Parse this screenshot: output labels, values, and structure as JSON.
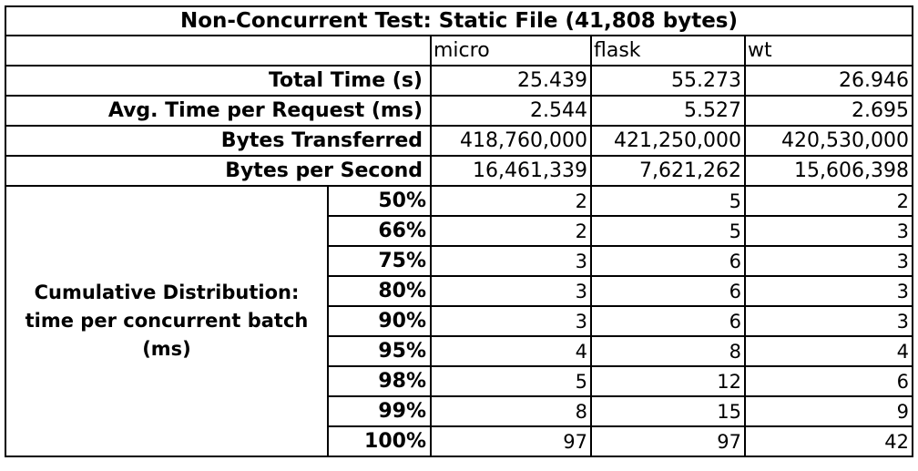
{
  "chart_data": {
    "type": "table",
    "title": "Non-Concurrent Test: Static File (41,808 bytes)",
    "columns": [
      "micro",
      "flask",
      "wt"
    ],
    "summary_rows": [
      {
        "label": "Total Time (s)",
        "values": [
          "25.439",
          "55.273",
          "26.946"
        ]
      },
      {
        "label": "Avg. Time per Request (ms)",
        "values": [
          "2.544",
          "5.527",
          "2.695"
        ]
      },
      {
        "label": "Bytes Transferred",
        "values": [
          "418,760,000",
          "421,250,000",
          "420,530,000"
        ]
      },
      {
        "label": "Bytes per Second",
        "values": [
          "16,461,339",
          "7,621,262",
          "15,606,398"
        ]
      }
    ],
    "distribution_label": "Cumulative Distribution: time per concurrent batch (ms)",
    "distribution_rows": [
      {
        "percentile": "50%",
        "values": [
          "2",
          "5",
          "2"
        ]
      },
      {
        "percentile": "66%",
        "values": [
          "2",
          "5",
          "3"
        ]
      },
      {
        "percentile": "75%",
        "values": [
          "3",
          "6",
          "3"
        ]
      },
      {
        "percentile": "80%",
        "values": [
          "3",
          "6",
          "3"
        ]
      },
      {
        "percentile": "90%",
        "values": [
          "3",
          "6",
          "3"
        ]
      },
      {
        "percentile": "95%",
        "values": [
          "4",
          "8",
          "4"
        ]
      },
      {
        "percentile": "98%",
        "values": [
          "5",
          "12",
          "6"
        ]
      },
      {
        "percentile": "99%",
        "values": [
          "8",
          "15",
          "9"
        ]
      },
      {
        "percentile": "100%",
        "values": [
          "97",
          "97",
          "42"
        ]
      }
    ]
  }
}
